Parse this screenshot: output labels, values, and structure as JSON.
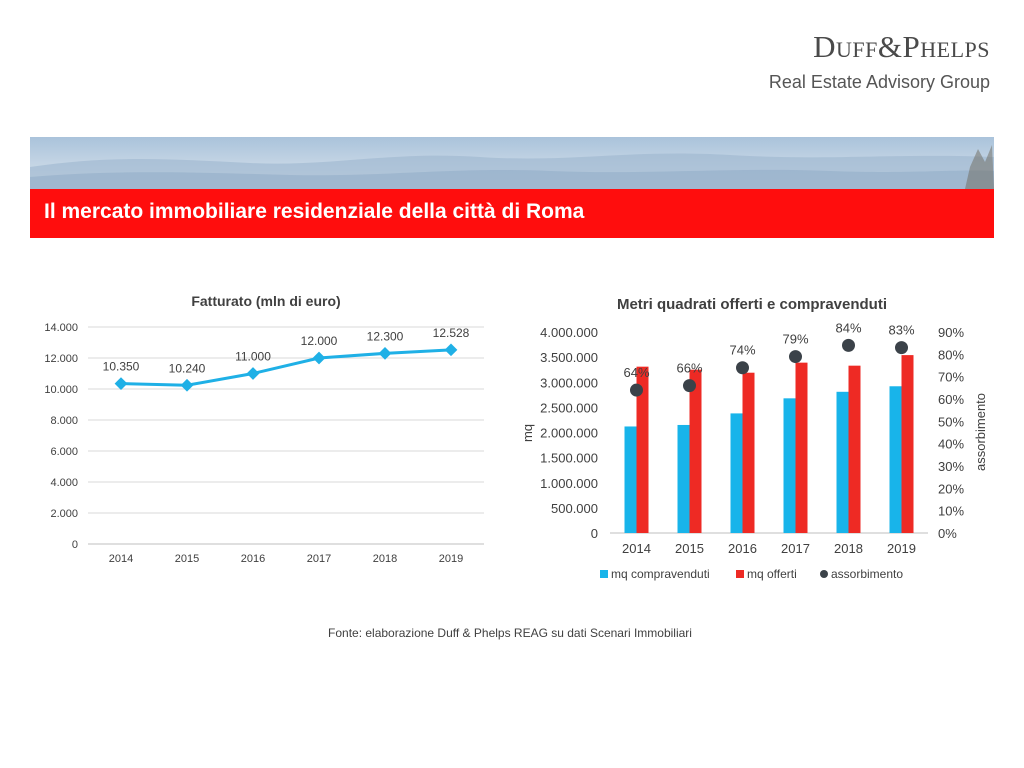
{
  "header": {
    "logo_main": "Duff&Phelps",
    "logo_sub": "Real Estate Advisory Group",
    "title": "Il mercato immobiliare residenziale della città di Roma"
  },
  "colors": {
    "red": "#ff0d0d",
    "line_blue": "#1fb0e6",
    "bar_blue": "#18b4ea",
    "bar_red": "#ee2a24",
    "dot": "#3b4249"
  },
  "chart_data": [
    {
      "type": "line",
      "title": "Fatturato (mln di euro)",
      "categories": [
        "2014",
        "2015",
        "2016",
        "2017",
        "2018",
        "2019"
      ],
      "values": [
        10350,
        10240,
        11000,
        12000,
        12300,
        12528
      ],
      "data_labels": [
        "10.350",
        "10.240",
        "11.000",
        "12.000",
        "12.300",
        "12.528"
      ],
      "y_ticks": [
        "0",
        "2.000",
        "4.000",
        "6.000",
        "8.000",
        "10.000",
        "12.000",
        "14.000"
      ],
      "ylim": [
        0,
        14000
      ],
      "grid": true
    },
    {
      "type": "bar",
      "title": "Metri quadrati offerti e compravenduti",
      "categories": [
        "2014",
        "2015",
        "2016",
        "2017",
        "2018",
        "2019"
      ],
      "ylabel": "mq",
      "ylabel_right": "assorbimento",
      "ylim": [
        0,
        4000000
      ],
      "y2lim": [
        0,
        90
      ],
      "y_ticks": [
        "0",
        "500.000",
        "1.000.000",
        "1.500.000",
        "2.000.000",
        "2.500.000",
        "3.000.000",
        "3.500.000",
        "4.000.000"
      ],
      "y2_ticks": [
        "0%",
        "10%",
        "20%",
        "30%",
        "40%",
        "50%",
        "60%",
        "70%",
        "80%",
        "90%"
      ],
      "series": [
        {
          "name": "mq compravenduti",
          "values": [
            2120000,
            2150000,
            2380000,
            2680000,
            2810000,
            2920000
          ]
        },
        {
          "name": "mq offerti",
          "values": [
            3310000,
            3250000,
            3190000,
            3390000,
            3330000,
            3540000
          ]
        }
      ],
      "absorption": {
        "name": "assorbimento",
        "values": [
          64,
          66,
          74,
          79,
          84,
          83
        ],
        "labels": [
          "64%",
          "66%",
          "74%",
          "79%",
          "84%",
          "83%"
        ]
      },
      "legend": "bottom"
    }
  ],
  "footer": {
    "source": "Fonte: elaborazione Duff & Phelps REAG su dati Scenari Immobiliari"
  }
}
